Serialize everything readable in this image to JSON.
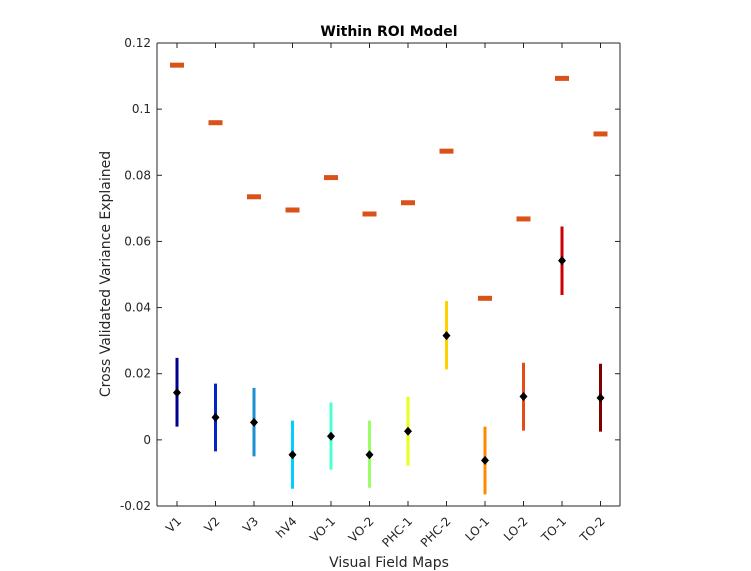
{
  "chart_data": {
    "type": "scatter",
    "title": "Within ROI Model",
    "xlabel": "Visual Field Maps",
    "ylabel": "Cross Validated Variance Explained",
    "ylim": [
      -0.02,
      0.12
    ],
    "yticks": [
      -0.02,
      0,
      0.02,
      0.04,
      0.06,
      0.08,
      0.1,
      0.12
    ],
    "ytick_labels": [
      "-0.02",
      "0",
      "0.02",
      "0.04",
      "0.06",
      "0.08",
      "0.1",
      "0.12"
    ],
    "categories": [
      "V1",
      "V2",
      "V3",
      "hV4",
      "VO-1",
      "VO-2",
      "PHC-1",
      "PHC-2",
      "LO-1",
      "LO-2",
      "TO-1",
      "TO-2"
    ],
    "grid": false,
    "series": [
      {
        "kind": "mean_with_errorbars",
        "means": [
          0.0143,
          0.0068,
          0.0053,
          -0.0045,
          0.0011,
          -0.0045,
          0.0026,
          0.0315,
          -0.0062,
          0.0131,
          0.0542,
          0.0127
        ],
        "lower": [
          0.004,
          -0.0035,
          -0.005,
          -0.0148,
          -0.009,
          -0.0145,
          -0.0078,
          0.0213,
          -0.0165,
          0.0028,
          0.0438,
          0.0025
        ],
        "upper": [
          0.0248,
          0.017,
          0.0157,
          0.0058,
          0.0113,
          0.0058,
          0.013,
          0.042,
          0.004,
          0.0233,
          0.0645,
          0.023
        ],
        "colors": [
          "#00008f",
          "#0025c9",
          "#1b8fd1",
          "#00cfff",
          "#4dffd1",
          "#9aff66",
          "#e6ff1a",
          "#ffd100",
          "#ff8a00",
          "#e64a19",
          "#cc0000",
          "#800000"
        ],
        "marker_color": "#000000"
      },
      {
        "kind": "horizontal_marker",
        "values": [
          0.1133,
          0.0959,
          0.0735,
          0.0695,
          0.0793,
          0.0683,
          0.0717,
          0.0873,
          0.0428,
          0.0668,
          0.1093,
          0.0925
        ],
        "color": "#d95319"
      }
    ]
  }
}
